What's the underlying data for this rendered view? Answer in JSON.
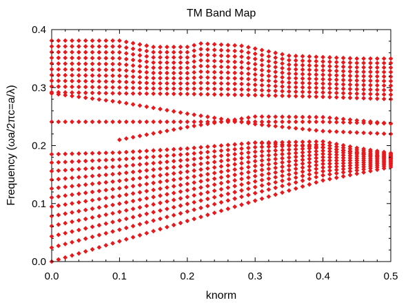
{
  "chart_data": {
    "type": "scatter",
    "title": "TM Band Map",
    "xlabel": "knorm",
    "ylabel": "Frequency (ωa/2πc=a/λ)",
    "xlim": [
      0.0,
      0.5
    ],
    "ylim": [
      0.0,
      0.4
    ],
    "xticks": [
      0.0,
      0.1,
      0.2,
      0.3,
      0.4,
      0.5
    ],
    "xtick_labels": [
      "0.0",
      "0.1",
      "0.2",
      "0.3",
      "0.4",
      "0.5"
    ],
    "yticks": [
      0.0,
      0.1,
      0.2,
      0.3,
      0.4
    ],
    "ytick_labels": [
      "0.0",
      "0.1",
      "0.2",
      "0.3",
      "0.4"
    ],
    "grid": false,
    "legend": "none",
    "marker": "diamond",
    "color": "#e8191c",
    "k_step": 0.01,
    "series": [
      {
        "band": "lower-band-top",
        "k": [
          0.0,
          0.1,
          0.2,
          0.3,
          0.4,
          0.45,
          0.5
        ],
        "f": [
          0.185,
          0.188,
          0.195,
          0.205,
          0.207,
          0.196,
          0.187
        ]
      },
      {
        "band": "lower-band-bottom",
        "k": [
          0.0,
          0.1,
          0.2,
          0.3,
          0.4,
          0.5
        ],
        "f": [
          0.0,
          0.035,
          0.07,
          0.105,
          0.14,
          0.163
        ]
      },
      {
        "band": "upper-band-top",
        "k": [
          0.0,
          0.1,
          0.15,
          0.2,
          0.22,
          0.28,
          0.35,
          0.45,
          0.5
        ],
        "f": [
          0.381,
          0.381,
          0.37,
          0.37,
          0.376,
          0.372,
          0.355,
          0.35,
          0.35
        ]
      },
      {
        "band": "upper-band-bottom",
        "k": [
          0.0,
          0.1,
          0.2,
          0.3,
          0.4,
          0.5
        ],
        "f": [
          0.292,
          0.29,
          0.289,
          0.287,
          0.284,
          0.28
        ]
      },
      {
        "band": "gap-flat-band",
        "k": [
          0.0,
          0.1,
          0.2,
          0.3,
          0.4,
          0.5
        ],
        "f": [
          0.241,
          0.241,
          0.241,
          0.241,
          0.241,
          0.238
        ]
      },
      {
        "band": "gap-descending-band",
        "k": [
          0.0,
          0.1,
          0.2,
          0.3,
          0.4,
          0.5
        ],
        "f": [
          0.29,
          0.275,
          0.255,
          0.237,
          0.225,
          0.22
        ]
      },
      {
        "band": "gap-ascending-band",
        "k": [
          0.1,
          0.2,
          0.3,
          0.4,
          0.5
        ],
        "f": [
          0.21,
          0.232,
          0.25,
          0.249,
          0.238
        ]
      },
      {
        "band": "lower-edge-descending-band",
        "k": [
          0.3,
          0.4,
          0.5
        ],
        "f": [
          0.205,
          0.197,
          0.178
        ]
      }
    ],
    "lower_band_lines": 11,
    "upper_band_lines": 9
  }
}
